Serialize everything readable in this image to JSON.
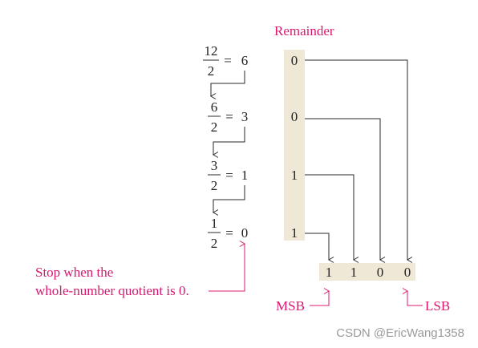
{
  "colors": {
    "accent": "#d8186f",
    "band": "#efe8d6",
    "ink": "#222222",
    "watermark": "#9a9a9a"
  },
  "remainder_header": "Remainder",
  "steps": [
    {
      "numerator": "12",
      "denominator": "2",
      "eq": "=",
      "quotient": "6",
      "remainder": "0"
    },
    {
      "numerator": "6",
      "denominator": "2",
      "eq": "=",
      "quotient": "3",
      "remainder": "0"
    },
    {
      "numerator": "3",
      "denominator": "2",
      "eq": "=",
      "quotient": "1",
      "remainder": "1"
    },
    {
      "numerator": "1",
      "denominator": "2",
      "eq": "=",
      "quotient": "0",
      "remainder": "1"
    }
  ],
  "result_bits": [
    "1",
    "1",
    "0",
    "0"
  ],
  "stop_note": [
    "Stop when the",
    "whole-number quotient is 0."
  ],
  "msb_label": "MSB",
  "lsb_label": "LSB",
  "watermark": "CSDN @EricWang1358"
}
